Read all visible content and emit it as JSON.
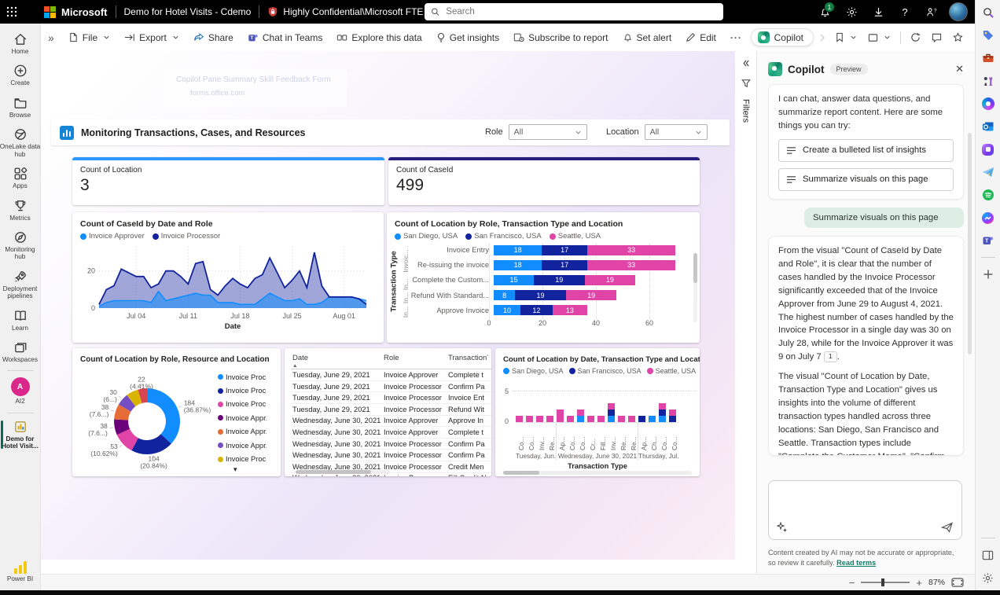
{
  "topbar": {
    "brand": "Microsoft",
    "doc_title": "Demo for Hotel Visits - Cdemo",
    "sensitivity": "Highly Confidential\\Microsoft FTE",
    "search_placeholder": "Search",
    "notification_count": "1"
  },
  "toolbar": {
    "file": "File",
    "export": "Export",
    "share": "Share",
    "chat": "Chat in Teams",
    "explore": "Explore this data",
    "insights": "Get insights",
    "subscribe": "Subscribe to report",
    "alert": "Set alert",
    "edit": "Edit",
    "more": "···",
    "copilot": "Copilot"
  },
  "sidebar": {
    "items": [
      {
        "label": "Home"
      },
      {
        "label": "Create"
      },
      {
        "label": "Browse"
      },
      {
        "label": "OneLake data hub"
      },
      {
        "label": "Apps"
      },
      {
        "label": "Metrics"
      },
      {
        "label": "Monitoring hub"
      },
      {
        "label": "Deployment pipelines"
      },
      {
        "label": "Learn"
      },
      {
        "label": "Workspaces"
      },
      {
        "label": "AI2"
      }
    ],
    "report": "Demo for Hotel Visit...",
    "brand": "Power BI"
  },
  "report": {
    "title": "Monitoring Transactions, Cases, and Resources",
    "slicers": [
      {
        "label": "Role",
        "value": "All"
      },
      {
        "label": "Location",
        "value": "All"
      }
    ],
    "ghost": {
      "line1": "Copilot Pane Summary Skill Feedback Form",
      "line2": "forms.office.com"
    }
  },
  "filters": {
    "label": "Filters"
  },
  "kpis": [
    {
      "title": "Count of Location",
      "value": "3",
      "accent": "#2e96ff"
    },
    {
      "title": "Count of CaseId",
      "value": "499",
      "accent": "#251e7c"
    }
  ],
  "chart_data": [
    {
      "type": "area",
      "title": "Count of CaseId by Date and Role",
      "xlabel": "Date",
      "x_ticks": [
        "Jul 04",
        "Jul 11",
        "Jul 18",
        "Jul 25",
        "Aug 01"
      ],
      "x_tick_idx": [
        5,
        12,
        19,
        26,
        33
      ],
      "x_range": "June 29 - August 4, 2021",
      "ylim": [
        0,
        33
      ],
      "y_ticks": [
        0,
        20
      ],
      "grid": true,
      "legend_position": "top",
      "series": [
        {
          "name": "Invoice Approver",
          "color": "#118DFF",
          "values": [
            1,
            3,
            4,
            4,
            4,
            4,
            4,
            3,
            9,
            4,
            5,
            6,
            7,
            8,
            7,
            7,
            3,
            3,
            3,
            2,
            2,
            2,
            5,
            8,
            6,
            4,
            4,
            5,
            2,
            2,
            3,
            6,
            6,
            6,
            6,
            5,
            4
          ]
        },
        {
          "name": "Invoice Processor",
          "color": "#12239E",
          "values": [
            2,
            10,
            12,
            21,
            19,
            17,
            17,
            11,
            13,
            20,
            20,
            17,
            13,
            24,
            25,
            10,
            7,
            12,
            16,
            13,
            11,
            16,
            18,
            27,
            19,
            11,
            15,
            20,
            11,
            30,
            12,
            6,
            6,
            6,
            6,
            5,
            2
          ]
        }
      ]
    },
    {
      "type": "hbar",
      "title": "Count of Location by Role, Transaction Type and Location",
      "ylabel": "Transaction Type",
      "role_axis": [
        "Invoic...",
        "In...",
        "In...",
        "In..."
      ],
      "categories": [
        "Invoice Entry",
        "Re-issuing the invoice",
        "Complete the Custom...",
        "Refund With Standard...",
        "Approve Invoice"
      ],
      "series": [
        {
          "name": "San Diego, USA",
          "color": "#118DFF",
          "values": [
            18,
            18,
            15,
            8,
            10
          ]
        },
        {
          "name": "San Francisco, USA",
          "color": "#12239E",
          "values": [
            17,
            17,
            19,
            19,
            12
          ]
        },
        {
          "name": "Seattle, USA",
          "color": "#E044A7",
          "values": [
            33,
            33,
            19,
            19,
            13
          ]
        }
      ],
      "x_ticks": [
        0,
        20,
        40,
        60
      ],
      "xlim": [
        0,
        70
      ]
    },
    {
      "type": "donut",
      "title": "Count of Location by Role, Resource and Location",
      "total": 499,
      "slices": [
        {
          "value": 184,
          "color": "#118DFF",
          "label": "184 (36.87%)",
          "legend": "Invoice Proc..."
        },
        {
          "value": 104,
          "color": "#12239E",
          "label": "104 (20.84%)",
          "legend": "Invoice Proc..."
        },
        {
          "value": 53,
          "color": "#E044A7",
          "label": "53 (10.62%)",
          "legend": "Invoice Proc..."
        },
        {
          "value": 38,
          "color": "#6B007B",
          "label": "38 (7.6...)",
          "legend": "Invoice Appr..."
        },
        {
          "value": 38,
          "color": "#E66C37",
          "label": "38 (7.6...)",
          "legend": "Invoice Appr..."
        },
        {
          "value": 30,
          "color": "#744EC2",
          "label": "30 (6...)",
          "legend": "Invoice Appr..."
        },
        {
          "value": 30,
          "color": "#D9B300",
          "label": "",
          "legend": "Invoice Proc..."
        },
        {
          "value": 22,
          "color": "#D64550",
          "label": "22 (4.41%)",
          "legend": ""
        }
      ]
    },
    {
      "type": "table",
      "columns": [
        "Date",
        "Role",
        "Transaction"
      ],
      "sort": "Date ascending",
      "rows": [
        [
          "Tuesday, June 29, 2021",
          "Invoice Approver",
          "Complete t"
        ],
        [
          "Tuesday, June 29, 2021",
          "Invoice Processor",
          "Confirm Pa"
        ],
        [
          "Tuesday, June 29, 2021",
          "Invoice Processor",
          "Invoice Ent"
        ],
        [
          "Tuesday, June 29, 2021",
          "Invoice Processor",
          "Refund Wit"
        ],
        [
          "Wednesday, June 30, 2021",
          "Invoice Approver",
          "Approve In"
        ],
        [
          "Wednesday, June 30, 2021",
          "Invoice Approver",
          "Complete t"
        ],
        [
          "Wednesday, June 30, 2021",
          "Invoice Processor",
          "Confirm Pa"
        ],
        [
          "Wednesday, June 30, 2021",
          "Invoice Processor",
          "Confirm Pa"
        ],
        [
          "Wednesday, June 30, 2021",
          "Invoice Processor",
          "Credit Men"
        ],
        [
          "Wednesday, June 30, 2021",
          "Invoice Processor",
          "Fill Credit N"
        ]
      ]
    },
    {
      "type": "column",
      "title": "Count of Location by Date, Transaction Type and Location",
      "xlabel": "Transaction Type",
      "y_ticks": [
        0,
        5
      ],
      "ylim": [
        0,
        7
      ],
      "series": [
        {
          "name": "San Diego, USA",
          "color": "#118DFF"
        },
        {
          "name": "San Francisco, USA",
          "color": "#12239E"
        },
        {
          "name": "Seattle, USA",
          "color": "#E044A7"
        }
      ],
      "groups": [
        {
          "label": "Tuesday, Jun...",
          "bars": [
            {
              "label": "Co...",
              "values": [
                0,
                0,
                1
              ]
            },
            {
              "label": "Co...",
              "values": [
                0,
                0,
                1
              ]
            },
            {
              "label": "Inv...",
              "values": [
                0,
                0,
                1
              ]
            },
            {
              "label": "Re...",
              "values": [
                0,
                0,
                1
              ]
            }
          ]
        },
        {
          "label": "Wednesday, June 30, 2021",
          "bars": [
            {
              "label": "Ap...",
              "values": [
                0,
                0,
                2
              ]
            },
            {
              "label": "Co...",
              "values": [
                0,
                0,
                1
              ]
            },
            {
              "label": "Co...",
              "values": [
                1,
                0,
                1
              ]
            },
            {
              "label": "Cr...",
              "values": [
                0,
                0,
                1
              ]
            },
            {
              "label": "Fill...",
              "values": [
                0,
                0,
                1
              ]
            },
            {
              "label": "Inv...",
              "values": [
                1,
                1,
                1
              ]
            },
            {
              "label": "Re...",
              "values": [
                0,
                0,
                1
              ]
            },
            {
              "label": "Re...",
              "values": [
                0,
                0,
                1
              ]
            }
          ]
        },
        {
          "label": "Thursday, Jul...",
          "bars": [
            {
              "label": "Ap...",
              "values": [
                0,
                1,
                0
              ]
            },
            {
              "label": "Ch...",
              "values": [
                1,
                0,
                0
              ]
            },
            {
              "label": "Co...",
              "values": [
                1,
                1,
                1
              ]
            },
            {
              "label": "Co...",
              "values": [
                0,
                1,
                1
              ]
            }
          ]
        }
      ]
    }
  ],
  "copilot": {
    "title": "Copilot",
    "badge": "Preview",
    "intro": "I can chat, answer data questions, and summarize report content. Here are some things you can try:",
    "suggestions": [
      "Create a bulleted list of insights",
      "Summarize visuals on this page"
    ],
    "user_message": "Summarize visuals on this page",
    "response_p1": "From the visual \"Count of CaseId by Date and Role\", it is clear that the number of cases handled by the Invoice Processor significantly exceeded that of the Invoice Approver from June 29 to August 4, 2021. The highest number of cases handled by the Invoice Processor in a single day was 30 on July 28, while for the Invoice Approver it was 9 on July 7",
    "citation": "1",
    "response_p1_end": ".",
    "response_p2": "The visual \"Count of Location by Date, Transaction Type and Location\" gives us insights into the volume of different transaction types handled across three locations: San Diego, San Francisco and Seattle. Transaction types include \"Complete the Customer Memo\", \"Confirm Payment Received\", \"Invoice Entry\",",
    "disclaimer": "Content created by AI may not be accurate or appropriate, so review it carefully.",
    "terms_link": "Read terms"
  },
  "statusbar": {
    "zoom": "87%"
  }
}
